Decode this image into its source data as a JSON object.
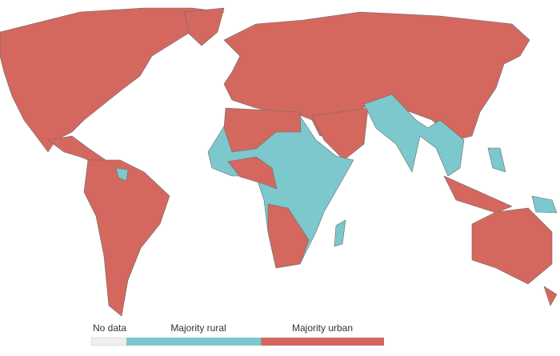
{
  "legend": {
    "items": [
      {
        "label": "No data",
        "color": "#eeeeee"
      },
      {
        "label": "Majority rural",
        "color": "#7cc8cc"
      },
      {
        "label": "Majority urban",
        "color": "#d4685f"
      }
    ]
  }
}
